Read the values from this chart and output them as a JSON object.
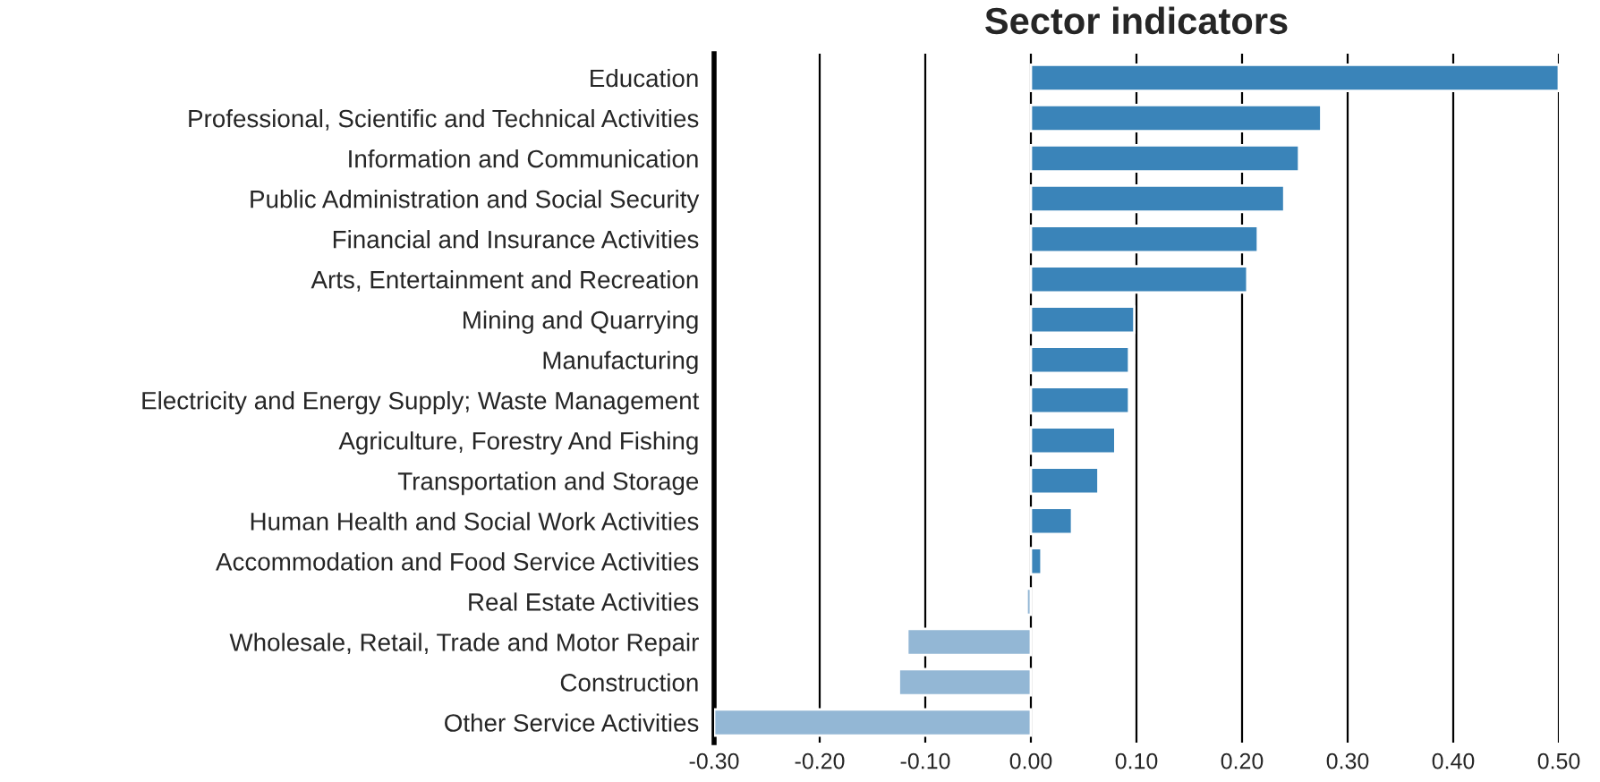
{
  "chart_data": {
    "type": "bar",
    "orientation": "horizontal",
    "title": "Sector indicators",
    "categories": [
      "Education",
      "Professional, Scientific and Technical Activities",
      "Information and Communication",
      "Public Administration and Social Security",
      "Financial and Insurance Activities",
      "Arts, Entertainment and Recreation",
      "Mining and Quarrying",
      "Manufacturing",
      "Electricity and Energy Supply; Waste Management",
      "Agriculture, Forestry And Fishing",
      "Transportation and Storage",
      "Human Health and Social Work Activities",
      "Accommodation and Food Service Activities",
      "Real Estate Activities",
      "Wholesale, Retail, Trade and Motor Repair",
      "Construction",
      "Other Service Activities"
    ],
    "values": [
      0.5,
      0.275,
      0.254,
      0.24,
      0.215,
      0.205,
      0.098,
      0.093,
      0.093,
      0.08,
      0.064,
      0.039,
      0.01,
      -0.004,
      -0.117,
      -0.125,
      -0.3
    ],
    "colors": [
      "#3a84b9",
      "#3a84b9",
      "#3a84b9",
      "#3a84b9",
      "#3a84b9",
      "#3a84b9",
      "#3a84b9",
      "#3a84b9",
      "#3a84b9",
      "#3a84b9",
      "#3a84b9",
      "#3a84b9",
      "#3a84b9",
      "#93b7d5",
      "#93b7d5",
      "#93b7d5",
      "#93b7d5"
    ],
    "xlim": [
      -0.3,
      0.5
    ],
    "xticks": [
      {
        "value": -0.3,
        "label": "-0.30"
      },
      {
        "value": -0.2,
        "label": "-0.20"
      },
      {
        "value": -0.1,
        "label": "-0.10"
      },
      {
        "value": 0,
        "label": "0.00"
      },
      {
        "value": 0.1,
        "label": "0.10"
      },
      {
        "value": 0.2,
        "label": "0.20"
      },
      {
        "value": 0.3,
        "label": "0.30"
      },
      {
        "value": 0.4,
        "label": "0.40"
      },
      {
        "value": 0.5,
        "label": "0.50"
      }
    ],
    "grid": "x"
  }
}
